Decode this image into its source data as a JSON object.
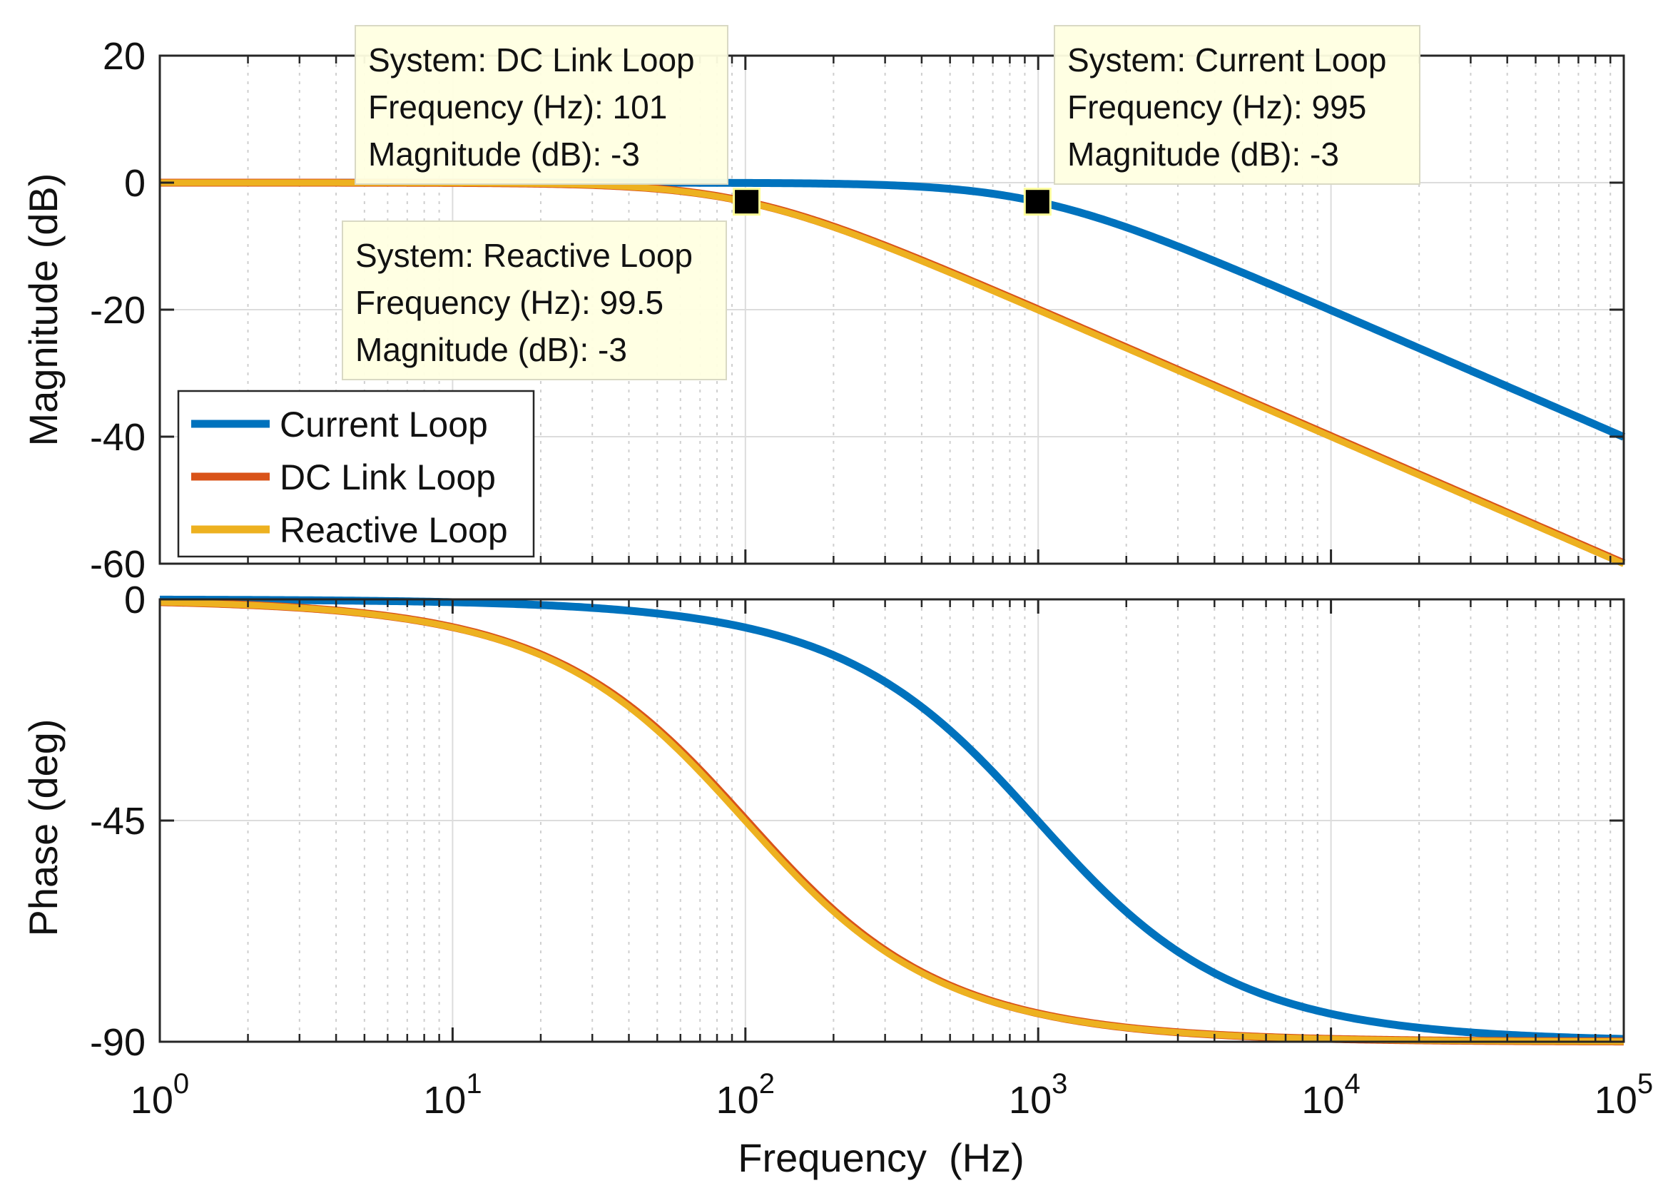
{
  "chart_data": {
    "type": "line",
    "subtype": "bode",
    "xlabel": "Frequency  (Hz)",
    "xscale": "log",
    "xlim": [
      1,
      100000
    ],
    "x_tick_labels": [
      {
        "base": "10",
        "exp": "0"
      },
      {
        "base": "10",
        "exp": "1"
      },
      {
        "base": "10",
        "exp": "2"
      },
      {
        "base": "10",
        "exp": "3"
      },
      {
        "base": "10",
        "exp": "4"
      },
      {
        "base": "10",
        "exp": "5"
      }
    ],
    "grid": true,
    "legend": {
      "location": "bottom-left of magnitude plot",
      "entries": [
        {
          "name": "Current Loop",
          "color": "#0072BD"
        },
        {
          "name": "DC Link Loop",
          "color": "#D95319"
        },
        {
          "name": "Reactive Loop",
          "color": "#EDB120"
        }
      ]
    },
    "series": [
      {
        "name": "Current Loop",
        "model": "first-order low-pass",
        "cutoff_hz": 995,
        "color": "#0072BD"
      },
      {
        "name": "DC Link Loop",
        "model": "first-order low-pass",
        "cutoff_hz": 101,
        "color": "#D95319"
      },
      {
        "name": "Reactive Loop",
        "model": "first-order low-pass",
        "cutoff_hz": 99.5,
        "color": "#EDB120"
      }
    ],
    "magnitude": {
      "ylabel": "Magnitude (dB)",
      "ylim": [
        -60,
        20
      ],
      "ticks": [
        20,
        0,
        -20,
        -40,
        -60
      ],
      "tick_labels": [
        "20",
        "0",
        "-20",
        "-40",
        "-60"
      ]
    },
    "phase": {
      "ylabel": "Phase (deg)",
      "ylim": [
        -90,
        0
      ],
      "ticks": [
        0,
        -45,
        -90
      ],
      "tick_labels": [
        "0",
        "-45",
        "-90"
      ]
    },
    "datatips": [
      {
        "series": "DC Link Loop",
        "x": 101,
        "y": -3,
        "lines": [
          "System: DC Link Loop",
          "Frequency (Hz): 101",
          "Magnitude (dB): -3"
        ]
      },
      {
        "series": "Current Loop",
        "x": 995,
        "y": -3,
        "lines": [
          "System: Current Loop",
          "Frequency (Hz): 995",
          "Magnitude (dB): -3"
        ]
      },
      {
        "series": "Reactive Loop",
        "x": 99.5,
        "y": -3,
        "lines": [
          "System: Reactive Loop",
          "Frequency (Hz): 99.5",
          "Magnitude (dB): -3"
        ]
      }
    ]
  }
}
